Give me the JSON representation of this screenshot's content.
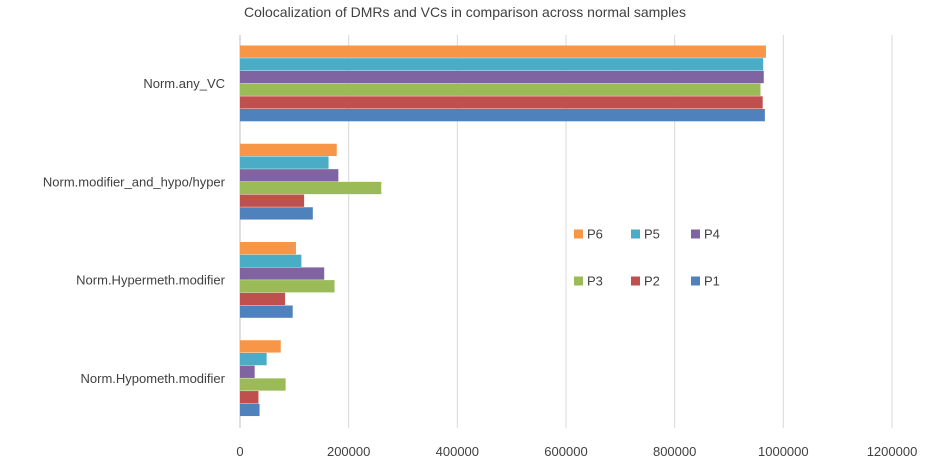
{
  "chart_data": {
    "type": "bar",
    "orientation": "horizontal",
    "title": "Colocalization of DMRs and VCs in comparison across normal samples",
    "xlabel": "",
    "ylabel": "",
    "categories": [
      "Norm.any_VC",
      "Norm.modifier_and_hypo/hyper",
      "Norm.Hypermeth.modifier",
      "Norm.Hypometh.modifier"
    ],
    "xlim": [
      0,
      1200000
    ],
    "xticks": [
      0,
      200000,
      400000,
      600000,
      800000,
      1000000,
      1200000
    ],
    "xtick_labels": [
      "0",
      "200000",
      "400000",
      "600000",
      "800000",
      "1000000",
      "1200000"
    ],
    "grid": true,
    "legend_position": "right-center",
    "legend": [
      "P6",
      "P5",
      "P4",
      "P3",
      "P2",
      "P1"
    ],
    "series": [
      {
        "name": "P6",
        "color": "#f79646",
        "values": [
          968000,
          178000,
          103000,
          75000
        ]
      },
      {
        "name": "P5",
        "color": "#4bacc6",
        "values": [
          963000,
          163000,
          113000,
          49000
        ]
      },
      {
        "name": "P4",
        "color": "#8064a2",
        "values": [
          964000,
          181000,
          155000,
          27000
        ]
      },
      {
        "name": "P3",
        "color": "#9bbb59",
        "values": [
          958000,
          260000,
          174000,
          84000
        ]
      },
      {
        "name": "P2",
        "color": "#c0504d",
        "values": [
          962000,
          118000,
          83000,
          34000
        ]
      },
      {
        "name": "P1",
        "color": "#4f81bd",
        "values": [
          966000,
          134000,
          97000,
          36000
        ]
      }
    ]
  }
}
